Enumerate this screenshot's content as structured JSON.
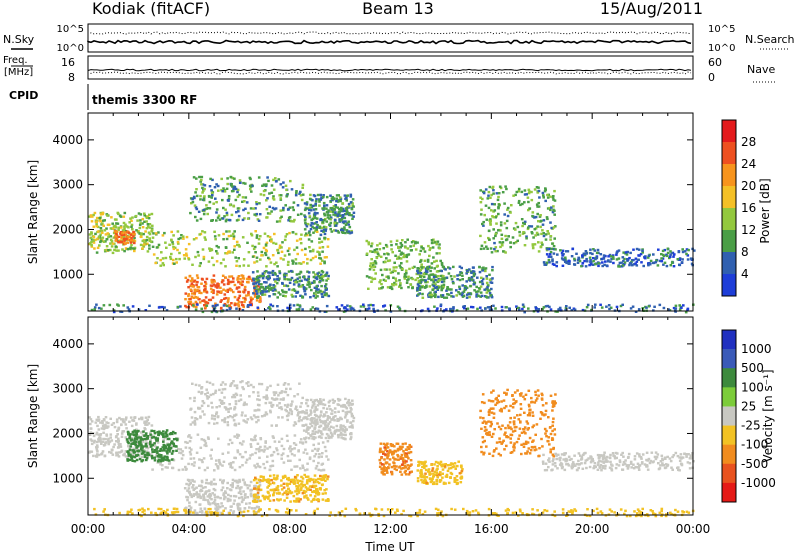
{
  "header": {
    "station": "Kodiak (fitACF)",
    "beam": "Beam 13",
    "date": "15/Aug/2011"
  },
  "status_panels": {
    "nsky_label": "N.Sky",
    "nsearch_label": "N.Search",
    "freq_label_line1": "Freq.",
    "freq_label_line2": "[MHz]",
    "nave_label": "Nave",
    "cpid_label": "CPID",
    "cpid_value": "themis 3300 RF",
    "left_ticks_top": [
      "10^5",
      "10^0"
    ],
    "right_ticks_top": [
      "10^5",
      "10^0"
    ],
    "left_ticks_freq": [
      "16",
      "8"
    ],
    "right_ticks_nave": [
      "60",
      "0"
    ]
  },
  "colorbars": {
    "power": {
      "title": "Power [dB]",
      "ticks": [
        "28",
        "24",
        "20",
        "16",
        "12",
        "8",
        "4"
      ],
      "colors": [
        "#e41a1c",
        "#ee5020",
        "#f7941d",
        "#f4c026",
        "#93c83e",
        "#4a9e46",
        "#3060b0",
        "#1e3ed8"
      ]
    },
    "velocity": {
      "title": "Velocity [m s⁻¹]",
      "ticks": [
        "1000",
        "500",
        "100",
        "25",
        "-25",
        "-100",
        "-500",
        "-1000"
      ],
      "colors": [
        "#2030c0",
        "#3a5ab8",
        "#3d8a3d",
        "#7ccc3a",
        "#c8c8c2",
        "#f2c224",
        "#f18c1e",
        "#e8521f",
        "#e51a17"
      ]
    }
  },
  "x_axis": {
    "title": "Time UT",
    "ticks": [
      "00:00",
      "04:00",
      "08:00",
      "12:00",
      "16:00",
      "20:00",
      "00:00"
    ]
  },
  "chart_data": [
    {
      "type": "heatmap",
      "title": "Power [dB]",
      "xlabel": "Time UT",
      "ylabel": "Slant Range [km]",
      "xlim": [
        0,
        24
      ],
      "ylim": [
        180,
        4600
      ],
      "yticks": [
        1000,
        2000,
        3000,
        4000
      ],
      "colorbar_levels": [
        4,
        8,
        12,
        16,
        20,
        24,
        28
      ],
      "features": [
        {
          "t_start": 0.0,
          "t_end": 2.5,
          "range_start": 1500,
          "range_end": 2400,
          "power_db": 14
        },
        {
          "t_start": 1.0,
          "t_end": 1.8,
          "range_start": 1700,
          "range_end": 2000,
          "power_db": 24
        },
        {
          "t_start": 2.5,
          "t_end": 9.5,
          "range_start": 1200,
          "range_end": 2000,
          "power_db": 14
        },
        {
          "t_start": 4.0,
          "t_end": 8.5,
          "range_start": 2200,
          "range_end": 3200,
          "power_db": 10
        },
        {
          "t_start": 8.5,
          "t_end": 10.5,
          "range_start": 1900,
          "range_end": 2800,
          "power_db": 9
        },
        {
          "t_start": 3.8,
          "t_end": 6.8,
          "range_start": 250,
          "range_end": 1000,
          "power_db": 24
        },
        {
          "t_start": 6.5,
          "t_end": 9.5,
          "range_start": 500,
          "range_end": 1100,
          "power_db": 9
        },
        {
          "t_start": 11.0,
          "t_end": 14.0,
          "range_start": 700,
          "range_end": 1800,
          "power_db": 12
        },
        {
          "t_start": 13.0,
          "t_end": 16.0,
          "range_start": 500,
          "range_end": 1200,
          "power_db": 9
        },
        {
          "t_start": 15.5,
          "t_end": 18.5,
          "range_start": 1500,
          "range_end": 3000,
          "power_db": 11
        },
        {
          "t_start": 18.0,
          "t_end": 24.0,
          "range_start": 1200,
          "range_end": 1600,
          "power_db": 6
        },
        {
          "t_start": 0.0,
          "t_end": 24.0,
          "range_start": 180,
          "range_end": 350,
          "power_db": 6
        }
      ]
    },
    {
      "type": "heatmap",
      "title": "Velocity [m s⁻¹]",
      "xlabel": "Time UT",
      "ylabel": "Slant Range [km]",
      "xlim": [
        0,
        24
      ],
      "ylim": [
        180,
        4600
      ],
      "yticks": [
        1000,
        2000,
        3000,
        4000
      ],
      "colorbar_levels": [
        -1000,
        -500,
        -100,
        -25,
        25,
        100,
        500,
        1000
      ],
      "features": [
        {
          "t_start": 0.0,
          "t_end": 2.5,
          "range_start": 1500,
          "range_end": 2400,
          "velocity": -10
        },
        {
          "t_start": 2.5,
          "t_end": 9.5,
          "range_start": 1200,
          "range_end": 2000,
          "velocity": 0
        },
        {
          "t_start": 4.0,
          "t_end": 8.5,
          "range_start": 2200,
          "range_end": 3200,
          "velocity": 0
        },
        {
          "t_start": 8.5,
          "t_end": 10.5,
          "range_start": 1900,
          "range_end": 2800,
          "velocity": 0
        },
        {
          "t_start": 1.5,
          "t_end": 3.5,
          "range_start": 1400,
          "range_end": 2100,
          "velocity": 150
        },
        {
          "t_start": 3.8,
          "t_end": 6.8,
          "range_start": 250,
          "range_end": 1000,
          "velocity": 0
        },
        {
          "t_start": 6.5,
          "t_end": 9.5,
          "range_start": 500,
          "range_end": 1100,
          "velocity": -80
        },
        {
          "t_start": 11.5,
          "t_end": 12.8,
          "range_start": 1100,
          "range_end": 1800,
          "velocity": -400
        },
        {
          "t_start": 13.0,
          "t_end": 14.8,
          "range_start": 900,
          "range_end": 1400,
          "velocity": -80
        },
        {
          "t_start": 15.5,
          "t_end": 18.5,
          "range_start": 1500,
          "range_end": 3000,
          "velocity": -300
        },
        {
          "t_start": 18.0,
          "t_end": 24.0,
          "range_start": 1200,
          "range_end": 1600,
          "velocity": 0
        },
        {
          "t_start": 0.0,
          "t_end": 24.0,
          "range_start": 180,
          "range_end": 350,
          "velocity": -50
        }
      ]
    }
  ]
}
